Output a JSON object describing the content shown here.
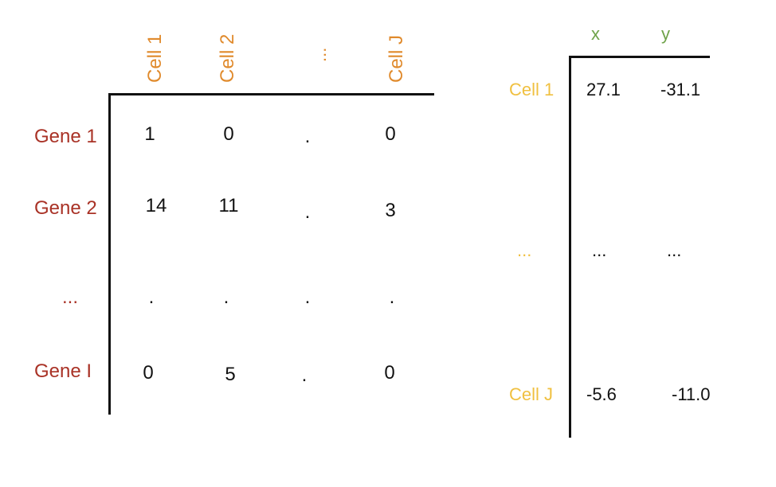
{
  "matrix": {
    "col_headers": [
      "Cell 1",
      "Cell 2",
      "...",
      "Cell J"
    ],
    "row_labels": [
      "Gene 1",
      "Gene 2",
      "...",
      "Gene I"
    ],
    "rows": [
      [
        "1",
        "0",
        ".",
        "0"
      ],
      [
        "14",
        "11",
        ".",
        "3"
      ],
      [
        ".",
        ".",
        ".",
        "."
      ],
      [
        "0",
        "5",
        ".",
        "0"
      ]
    ]
  },
  "embedding": {
    "col_headers": [
      "x",
      "y"
    ],
    "row_labels": [
      "Cell 1",
      "...",
      "Cell J"
    ],
    "rows": [
      [
        "27.1",
        "-31.1"
      ],
      [
        "...",
        "..."
      ],
      [
        "-5.6",
        "-11.0"
      ]
    ]
  },
  "colors": {
    "cell_header": "#E08A2C",
    "gene_label": "#A93226",
    "embedding_cell_label": "#F0C040",
    "coord_header": "#6FA34A"
  }
}
